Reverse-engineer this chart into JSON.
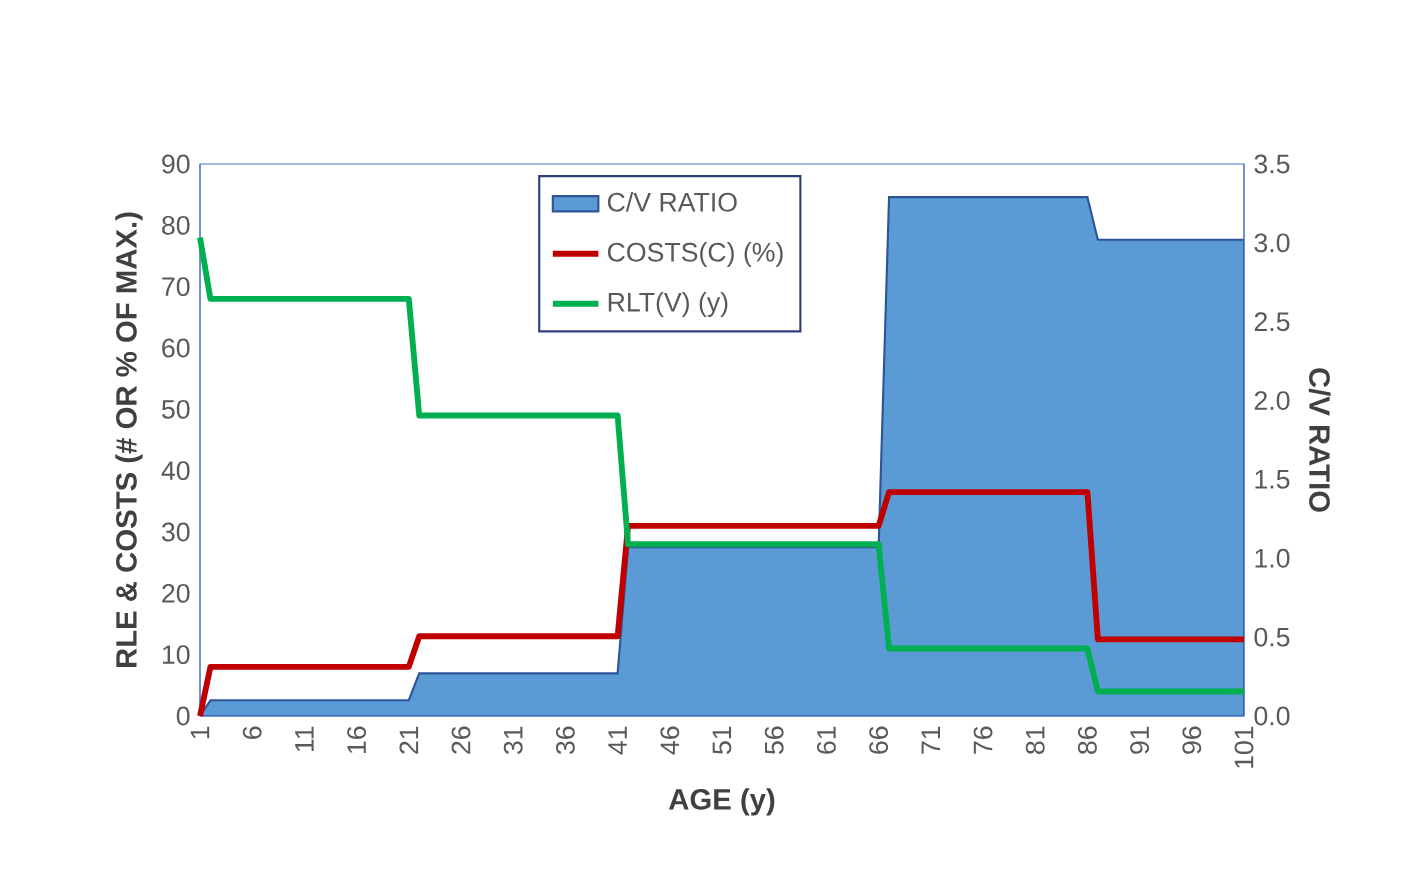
{
  "chart_data": {
    "type": "line",
    "xlabel": "AGE (y)",
    "ylabel": "RLE & COSTS (# OR % OF MAX.)",
    "y2label": "C/V RATIO",
    "xlim": [
      1,
      101
    ],
    "xticks": [
      1,
      6,
      11,
      16,
      21,
      26,
      31,
      36,
      41,
      46,
      51,
      56,
      61,
      66,
      71,
      76,
      81,
      86,
      91,
      96,
      101
    ],
    "ylim": [
      0,
      90
    ],
    "yticks": [
      0,
      10,
      20,
      30,
      40,
      50,
      60,
      70,
      80,
      90
    ],
    "y2lim": [
      0,
      3.5
    ],
    "y2ticks": [
      {
        "value": 0,
        "label": "0.0"
      },
      {
        "value": 0.5,
        "label": "0.5"
      },
      {
        "value": 1,
        "label": "1.0"
      },
      {
        "value": 1.5,
        "label": "1.5"
      },
      {
        "value": 2,
        "label": "2.0"
      },
      {
        "value": 2.5,
        "label": "2.5"
      },
      {
        "value": 3,
        "label": "3.0"
      },
      {
        "value": 3.5,
        "label": "3.5"
      }
    ],
    "legend": "top",
    "grid": false,
    "series": [
      {
        "name": "C/V RATIO",
        "type": "area",
        "axis": "y2",
        "color": "#5b9bd5",
        "x": [
          1,
          2,
          21,
          22,
          41,
          42,
          66,
          67,
          86,
          87,
          101
        ],
        "values": [
          0.0,
          0.1,
          0.1,
          0.27,
          0.27,
          1.07,
          1.07,
          3.29,
          3.29,
          3.02,
          3.02
        ]
      },
      {
        "name": "COSTS(C) (%)",
        "type": "line",
        "color": "#c00000",
        "x": [
          1,
          2,
          21,
          22,
          41,
          42,
          66,
          67,
          86,
          87,
          101
        ],
        "values": [
          0,
          8,
          8,
          13,
          13,
          31,
          31,
          36.5,
          36.5,
          12.5,
          12.5
        ]
      },
      {
        "name": "RLT(V) (y)",
        "type": "line",
        "color": "#00b050",
        "x": [
          1,
          2,
          21,
          22,
          41,
          42,
          66,
          67,
          86,
          87,
          101
        ],
        "values": [
          78,
          68,
          68,
          49,
          49,
          28,
          28,
          11,
          11,
          4,
          4
        ]
      }
    ]
  }
}
